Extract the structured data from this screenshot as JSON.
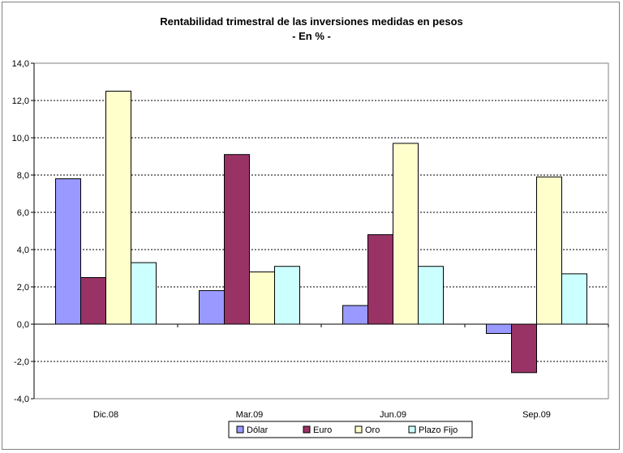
{
  "chart_data": {
    "type": "bar",
    "title": "Rentabilidad trimestral de las inversiones medidas en pesos",
    "subtitle": "- En % -",
    "categories": [
      "Dic.08",
      "Mar.09",
      "Jun.09",
      "Sep.09"
    ],
    "series": [
      {
        "name": "Dólar",
        "color": "#9999ff",
        "values": [
          7.8,
          1.8,
          1.0,
          -0.5
        ]
      },
      {
        "name": "Euro",
        "color": "#993366",
        "values": [
          2.5,
          9.1,
          4.8,
          -2.6
        ]
      },
      {
        "name": "Oro",
        "color": "#ffffcc",
        "values": [
          12.5,
          2.8,
          9.7,
          7.9
        ]
      },
      {
        "name": "Plazo Fijo",
        "color": "#ccffff",
        "values": [
          3.3,
          3.1,
          3.1,
          2.7
        ]
      }
    ],
    "ylim": [
      -4,
      14
    ],
    "yticks": [
      "-4,0",
      "-2,0",
      "0,0",
      "2,0",
      "4,0",
      "6,0",
      "8,0",
      "10,0",
      "12,0",
      "14,0"
    ],
    "xlabel": "",
    "ylabel": "",
    "grid": true,
    "legend_position": "bottom"
  }
}
